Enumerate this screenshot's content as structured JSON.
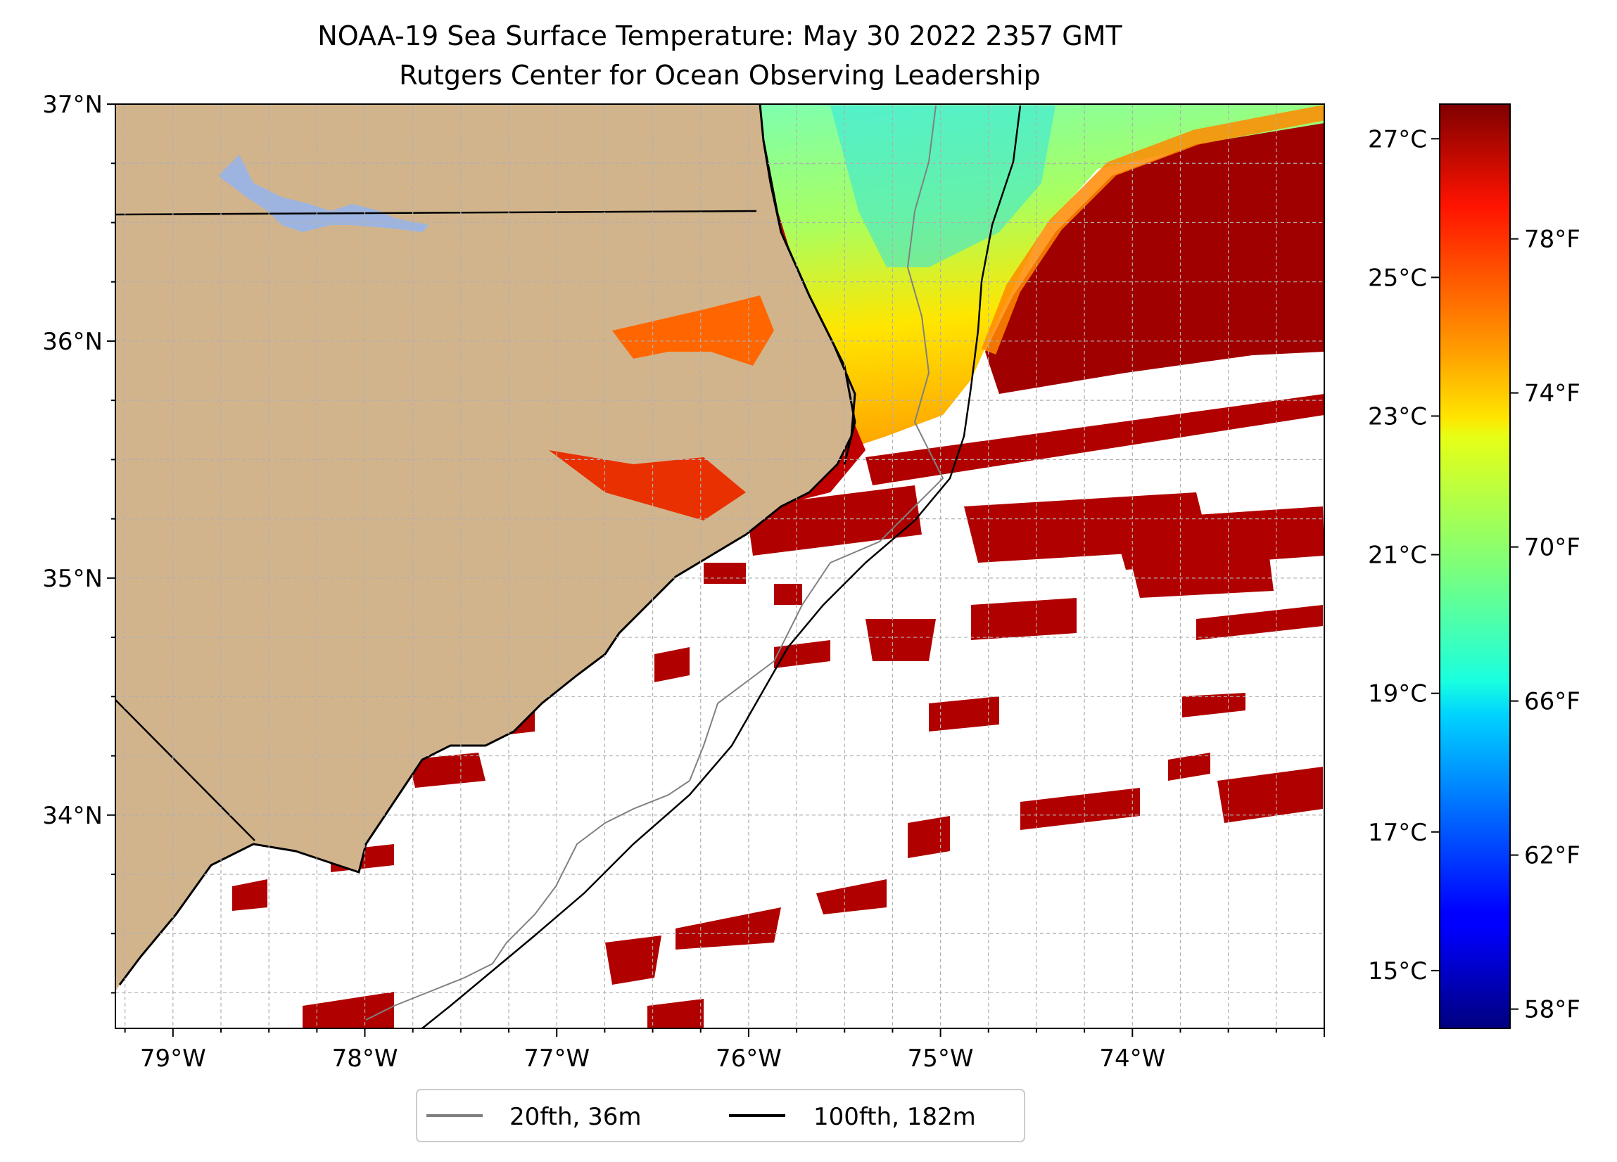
{
  "title": {
    "line1": "NOAA-19 Sea Surface Temperature: May 30 2022 2357 GMT",
    "line2": "Rutgers Center for Ocean Observing Leadership"
  },
  "map": {
    "lon_range": [
      -79.3,
      -73.0
    ],
    "lat_range": [
      33.1,
      37.0
    ],
    "lon_ticks": [
      "79°W",
      "78°W",
      "77°W",
      "76°W",
      "75°W",
      "74°W"
    ],
    "lat_ticks": [
      "37°N",
      "36°N",
      "35°N",
      "34°N"
    ],
    "gridlines": true,
    "colors": {
      "land": "#d2b48c",
      "lake": "#9db4e0",
      "warm_sst": "#b00000",
      "contour_20fth": "#808080",
      "contour_100fth": "#000000"
    }
  },
  "colorbar": {
    "colormap": "jet",
    "celsius_ticks": [
      "27°C",
      "25°C",
      "23°C",
      "21°C",
      "19°C",
      "17°C",
      "15°C"
    ],
    "fahrenheit_ticks": [
      "78°F",
      "74°F",
      "70°F",
      "66°F",
      "62°F",
      "58°F"
    ]
  },
  "legend": {
    "items": [
      {
        "label": "20fth, 36m",
        "color": "#808080"
      },
      {
        "label": "100fth, 182m",
        "color": "#000000"
      }
    ]
  }
}
